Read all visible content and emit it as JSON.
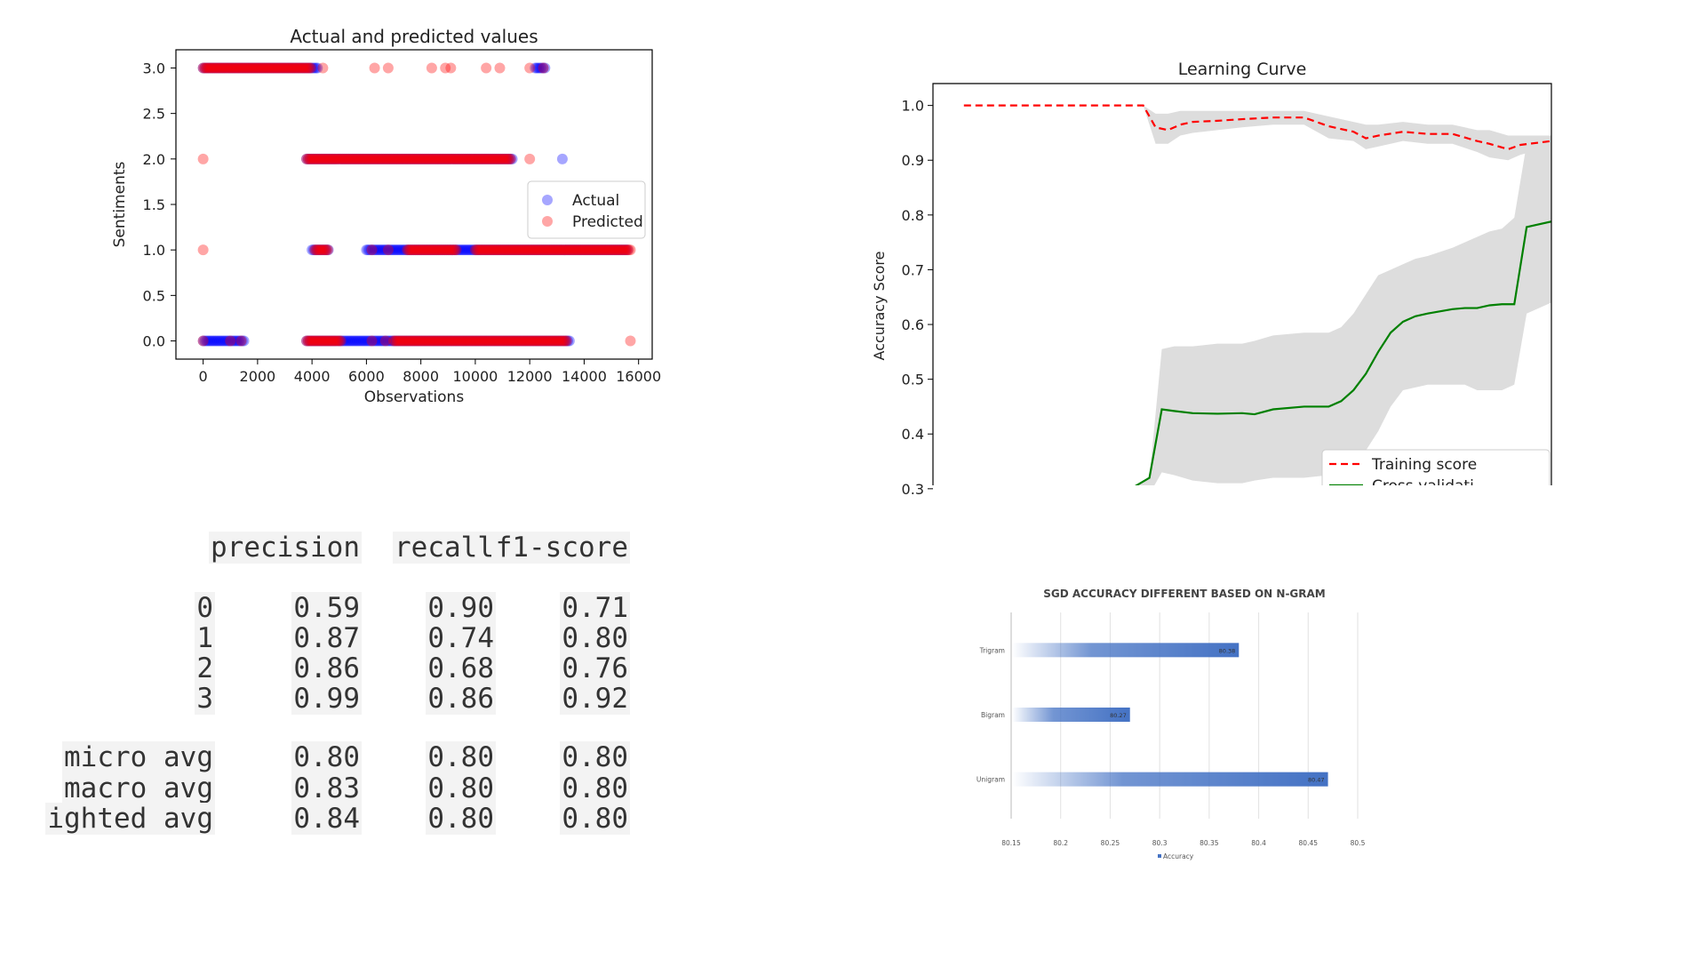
{
  "chart_data": [
    {
      "type": "scatter",
      "title": "Actual and predicted values",
      "xlabel": "Observations",
      "ylabel": "Sentiments",
      "xlim": [
        -1000,
        16500
      ],
      "ylim": [
        -0.2,
        3.2
      ],
      "xticks": [
        "0",
        "2000",
        "4000",
        "6000",
        "8000",
        "10000",
        "12000",
        "14000",
        "16000"
      ],
      "xtick_values": [
        0,
        2000,
        4000,
        6000,
        8000,
        10000,
        12000,
        14000,
        16000
      ],
      "yticks": [
        "0.0",
        "0.5",
        "1.0",
        "1.5",
        "2.0",
        "2.5",
        "3.0"
      ],
      "ytick_values": [
        0,
        0.5,
        1.0,
        1.5,
        2.0,
        2.5,
        3.0
      ],
      "legend_position": "right-middle",
      "series": [
        {
          "name": "Actual",
          "color": "#0000ff",
          "bands": [
            {
              "y": 3,
              "x_ranges": [
                [
                  0,
                  4200
                ],
                [
                  12200,
                  12600
                ]
              ]
            },
            {
              "y": 2,
              "x_ranges": [
                [
                  3800,
                  11400
                ],
                [
                  13200,
                  13200
                ]
              ]
            },
            {
              "y": 1,
              "x_ranges": [
                [
                  4000,
                  4600
                ],
                [
                  6000,
                  15600
                ]
              ]
            },
            {
              "y": 0,
              "x_ranges": [
                [
                  0,
                  1500
                ],
                [
                  3800,
                  13500
                ]
              ]
            }
          ]
        },
        {
          "name": "Predicted",
          "color": "#ff0000",
          "bands": [
            {
              "y": 3,
              "x_ranges": [
                [
                  0,
                  4000
                ]
              ],
              "points": [
                4400,
                6300,
                6800,
                8400,
                8900,
                9100,
                10400,
                10900,
                12000,
                12500
              ]
            },
            {
              "y": 2,
              "x_ranges": [
                [
                  3800,
                  11300
                ]
              ],
              "points": [
                0,
                12000
              ]
            },
            {
              "y": 1,
              "x_ranges": [
                [
                  4100,
                  4600
                ],
                [
                  7500,
                  9300
                ],
                [
                  10000,
                  15700
                ]
              ],
              "points": [
                0,
                6200,
                6800
              ]
            },
            {
              "y": 0,
              "x_ranges": [
                [
                  3800,
                  5100
                ],
                [
                  7000,
                  13400
                ]
              ],
              "points": [
                0,
                1000,
                1400,
                6200,
                6700,
                15700
              ]
            }
          ]
        }
      ]
    },
    {
      "type": "line",
      "title": "Learning Curve",
      "xlabel": "",
      "ylabel": "Accuracy Score",
      "ylim": [
        0.29,
        1.04
      ],
      "xlim": [
        0,
        100
      ],
      "yticks": [
        "0.3",
        "0.4",
        "0.5",
        "0.6",
        "0.7",
        "0.8",
        "0.9",
        "1.0"
      ],
      "ytick_values": [
        0.3,
        0.4,
        0.5,
        0.6,
        0.7,
        0.8,
        0.9,
        1.0
      ],
      "legend_position": "bottom-right",
      "legend_labels": [
        "Training score",
        "Cross-validati"
      ],
      "series": [
        {
          "name": "Training score",
          "color": "#ff0000",
          "style": "dashed",
          "x": [
            5,
            10,
            20,
            30,
            34,
            36,
            38,
            40,
            42,
            46,
            50,
            55,
            60,
            64,
            68,
            70,
            72,
            76,
            80,
            84,
            88,
            90,
            93,
            95,
            100
          ],
          "y": [
            1.0,
            1.0,
            1.0,
            1.0,
            1.0,
            0.96,
            0.955,
            0.965,
            0.97,
            0.972,
            0.975,
            0.978,
            0.978,
            0.962,
            0.952,
            0.94,
            0.945,
            0.952,
            0.948,
            0.948,
            0.935,
            0.93,
            0.92,
            0.928,
            0.935
          ],
          "band_upper": [
            1.0,
            1.0,
            1.0,
            1.0,
            1.0,
            0.985,
            0.985,
            0.99,
            0.99,
            0.99,
            0.99,
            0.99,
            0.99,
            0.98,
            0.97,
            0.965,
            0.965,
            0.97,
            0.965,
            0.965,
            0.955,
            0.955,
            0.945,
            0.945,
            0.945
          ],
          "band_lower": [
            1.0,
            1.0,
            1.0,
            1.0,
            1.0,
            0.93,
            0.93,
            0.945,
            0.95,
            0.955,
            0.96,
            0.965,
            0.965,
            0.94,
            0.935,
            0.92,
            0.925,
            0.935,
            0.93,
            0.93,
            0.915,
            0.905,
            0.9,
            0.91,
            0.925
          ]
        },
        {
          "name": "Cross-validati",
          "color": "#008000",
          "style": "solid",
          "x": [
            5,
            20,
            30,
            32,
            35,
            37,
            39,
            42,
            46,
            50,
            52,
            55,
            60,
            64,
            66,
            68,
            70,
            72,
            74,
            76,
            78,
            80,
            84,
            86,
            88,
            90,
            92,
            94,
            96,
            100
          ],
          "y": [
            0.286,
            0.286,
            0.286,
            0.3,
            0.32,
            0.445,
            0.442,
            0.438,
            0.437,
            0.438,
            0.436,
            0.445,
            0.45,
            0.45,
            0.46,
            0.48,
            0.51,
            0.55,
            0.585,
            0.605,
            0.615,
            0.62,
            0.628,
            0.63,
            0.63,
            0.635,
            0.637,
            0.637,
            0.778,
            0.788
          ],
          "band_upper": [
            0.286,
            0.286,
            0.286,
            0.3,
            0.32,
            0.555,
            0.56,
            0.56,
            0.565,
            0.565,
            0.57,
            0.58,
            0.585,
            0.585,
            0.595,
            0.62,
            0.655,
            0.69,
            0.7,
            0.71,
            0.72,
            0.725,
            0.74,
            0.75,
            0.76,
            0.77,
            0.775,
            0.795,
            0.93,
            0.945
          ],
          "band_lower": [
            0.286,
            0.286,
            0.286,
            0.29,
            0.29,
            0.33,
            0.325,
            0.315,
            0.31,
            0.31,
            0.315,
            0.32,
            0.32,
            0.325,
            0.33,
            0.35,
            0.37,
            0.405,
            0.45,
            0.48,
            0.485,
            0.49,
            0.49,
            0.49,
            0.48,
            0.48,
            0.48,
            0.49,
            0.62,
            0.64
          ]
        }
      ]
    },
    {
      "type": "table",
      "columns": [
        "",
        "precision",
        "recall",
        "f1-score"
      ],
      "rows": [
        [
          "0",
          "0.59",
          "0.90",
          "0.71"
        ],
        [
          "1",
          "0.87",
          "0.74",
          "0.80"
        ],
        [
          "2",
          "0.86",
          "0.68",
          "0.76"
        ],
        [
          "3",
          "0.99",
          "0.86",
          "0.92"
        ],
        [
          "micro avg",
          "0.80",
          "0.80",
          "0.80"
        ],
        [
          "macro avg",
          "0.83",
          "0.80",
          "0.80"
        ],
        [
          "ighted avg",
          "0.84",
          "0.80",
          "0.80"
        ]
      ]
    },
    {
      "type": "bar",
      "orientation": "horizontal",
      "title": "SGD ACCURACY DIFFERENT BASED ON N-GRAM",
      "categories": [
        "Trigram",
        "Bigram",
        "Unigram"
      ],
      "values": [
        80.38,
        80.27,
        80.47
      ],
      "value_labels": [
        "80.38",
        "80.27",
        "80.47"
      ],
      "xlim": [
        80.15,
        80.5
      ],
      "xticks": [
        "80.15",
        "80.2",
        "80.25",
        "80.3",
        "80.35",
        "80.4",
        "80.45",
        "80.5"
      ],
      "xtick_values": [
        80.15,
        80.2,
        80.25,
        80.3,
        80.35,
        80.4,
        80.45,
        80.5
      ],
      "legend": [
        "Accuracy"
      ],
      "bar_color": "#4472c4"
    }
  ]
}
